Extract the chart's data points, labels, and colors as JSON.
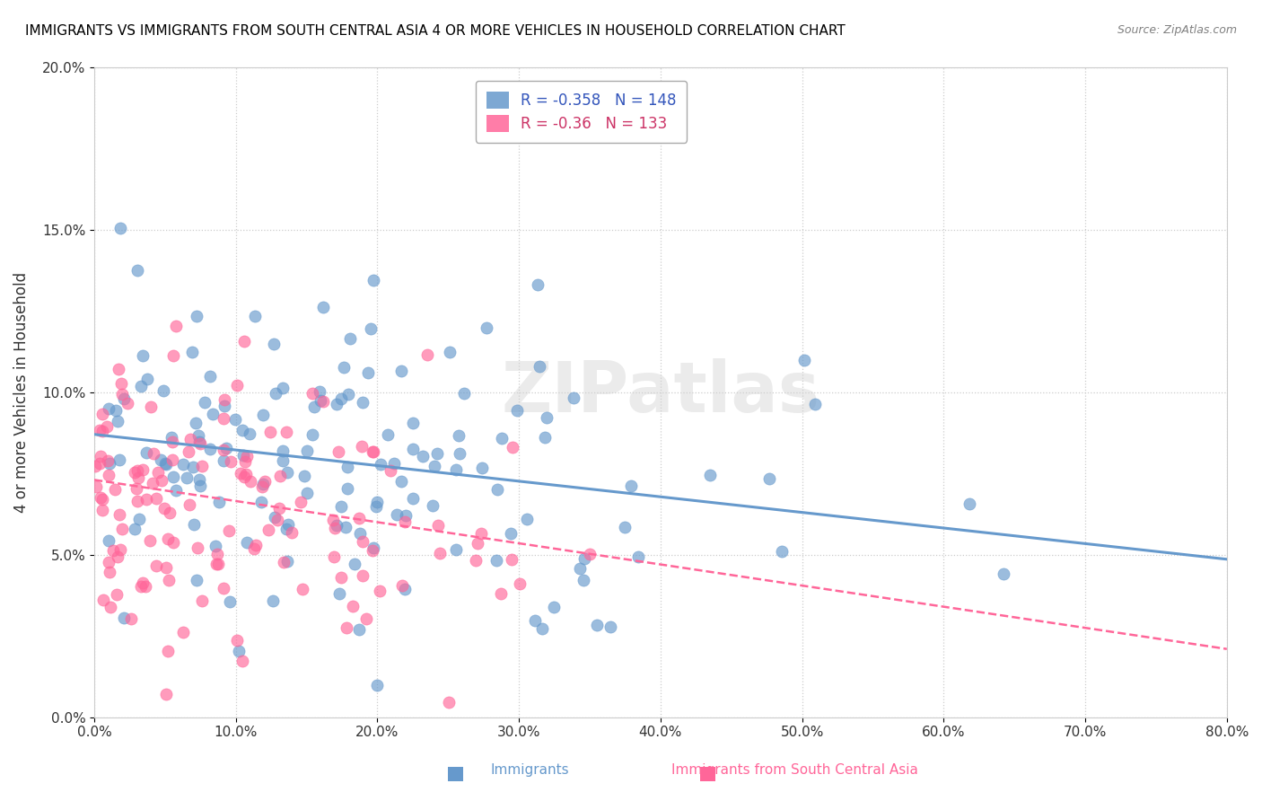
{
  "title": "IMMIGRANTS VS IMMIGRANTS FROM SOUTH CENTRAL ASIA 4 OR MORE VEHICLES IN HOUSEHOLD CORRELATION CHART",
  "source": "Source: ZipAtlas.com",
  "ylabel": "4 or more Vehicles in Household",
  "xlim": [
    0.0,
    0.8
  ],
  "ylim": [
    0.0,
    0.2
  ],
  "xticks": [
    0.0,
    0.1,
    0.2,
    0.3,
    0.4,
    0.5,
    0.6,
    0.7,
    0.8
  ],
  "xticklabels": [
    "0.0%",
    "10.0%",
    "20.0%",
    "30.0%",
    "40.0%",
    "50.0%",
    "60.0%",
    "70.0%",
    "80.0%"
  ],
  "yticks": [
    0.0,
    0.05,
    0.1,
    0.15,
    0.2
  ],
  "yticklabels": [
    "0.0%",
    "5.0%",
    "10.0%",
    "15.0%",
    "20.0%"
  ],
  "blue_R": -0.358,
  "blue_N": 148,
  "pink_R": -0.36,
  "pink_N": 133,
  "blue_color": "#6699CC",
  "pink_color": "#FF6699",
  "legend_blue_label": "Immigrants",
  "legend_pink_label": "Immigrants from South Central Asia",
  "watermark": "ZIPatlas",
  "blue_scatter_seed": 42,
  "pink_scatter_seed": 7,
  "blue_intercept": 0.087,
  "blue_slope": -0.048,
  "pink_intercept": 0.073,
  "pink_slope": -0.065
}
